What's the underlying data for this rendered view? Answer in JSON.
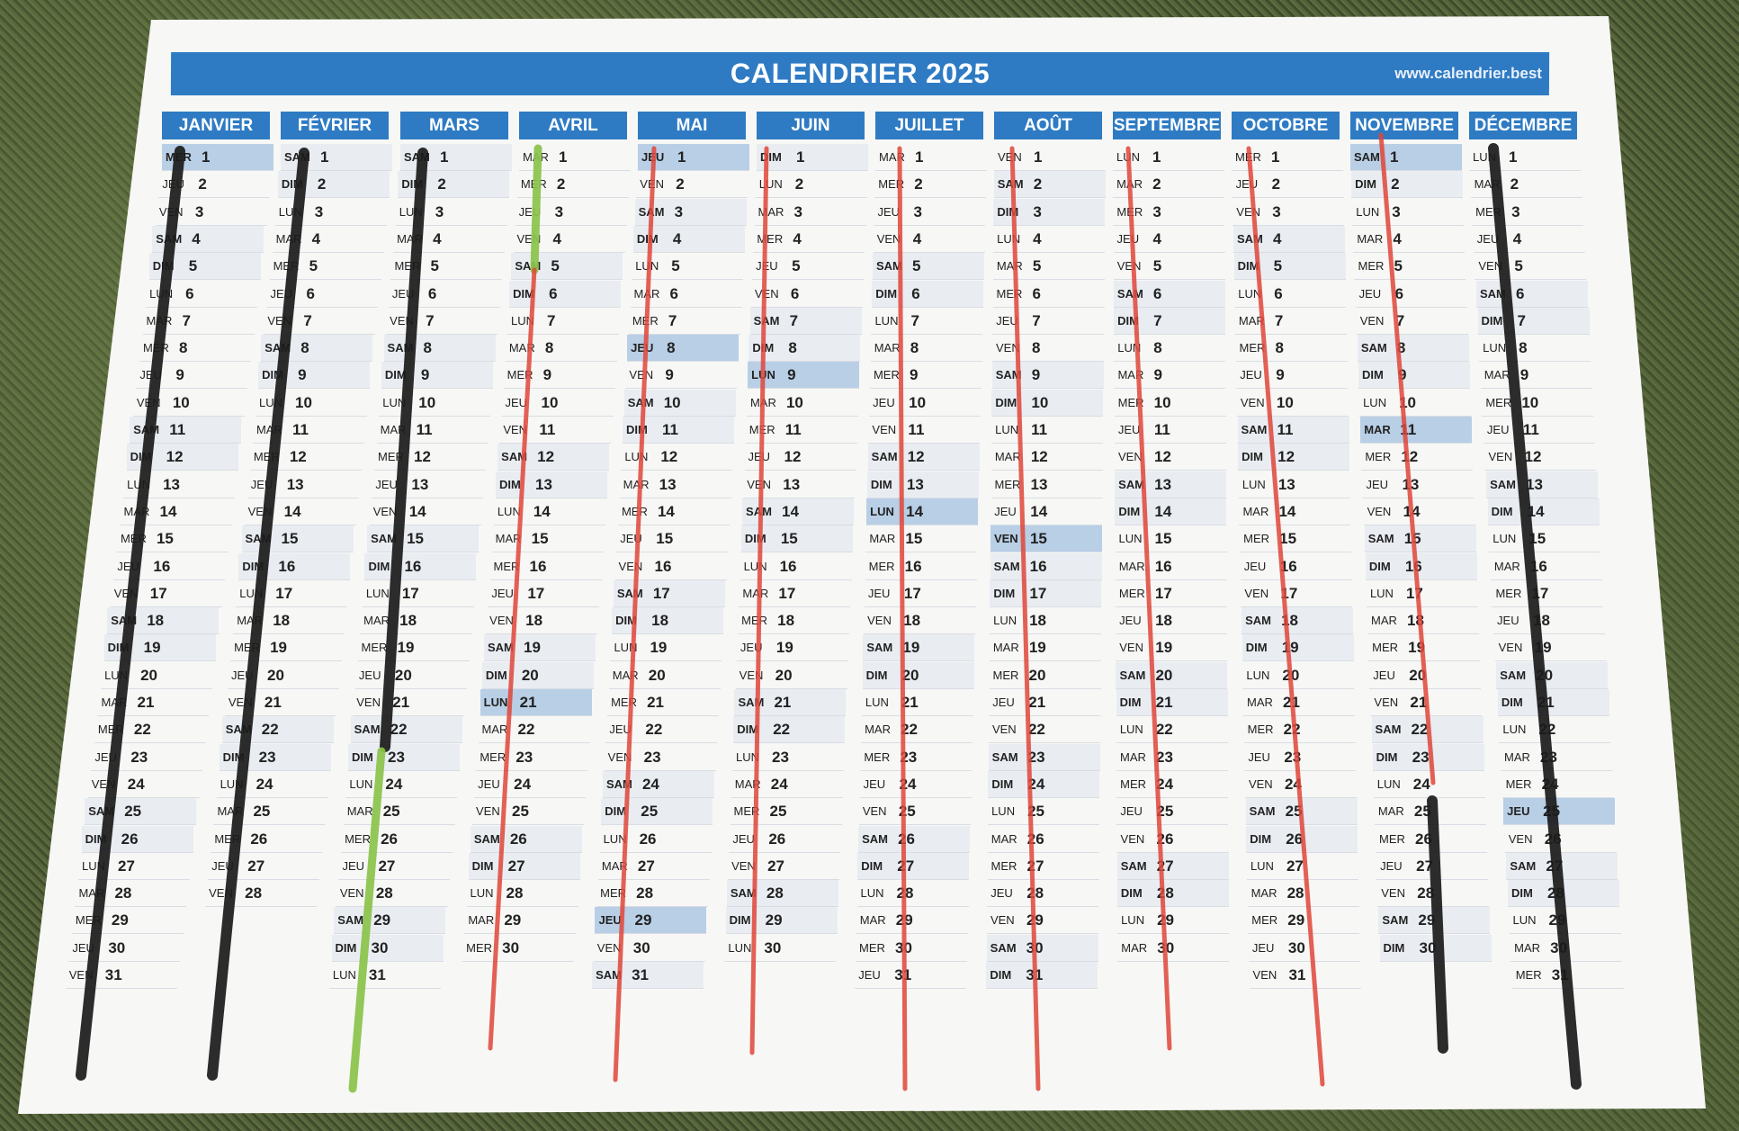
{
  "calendar": {
    "title": "CALENDRIER 2025",
    "website": "www.calendrier.best",
    "accent_color": "#2e7bc4",
    "months": [
      {
        "name": "JANVIER",
        "start": "MER",
        "days": 31
      },
      {
        "name": "FÉVRIER",
        "start": "SAM",
        "days": 28
      },
      {
        "name": "MARS",
        "start": "SAM",
        "days": 31
      },
      {
        "name": "AVRIL",
        "start": "MAR",
        "days": 30
      },
      {
        "name": "MAI",
        "start": "JEU",
        "days": 31
      },
      {
        "name": "JUIN",
        "start": "DIM",
        "days": 30
      },
      {
        "name": "JUILLET",
        "start": "MAR",
        "days": 31
      },
      {
        "name": "AOÛT",
        "start": "VEN",
        "days": 31
      },
      {
        "name": "SEPTEMBRE",
        "start": "LUN",
        "days": 30
      },
      {
        "name": "OCTOBRE",
        "start": "MER",
        "days": 31
      },
      {
        "name": "NOVEMBRE",
        "start": "SAM",
        "days": 30
      },
      {
        "name": "DÉCEMBRE",
        "start": "LUN",
        "days": 31
      }
    ],
    "weekday_names": [
      "LUN",
      "MAR",
      "MER",
      "JEU",
      "VEN",
      "SAM",
      "DIM"
    ],
    "holidays": [
      {
        "month": 0,
        "day": 1
      },
      {
        "month": 3,
        "day": 21
      },
      {
        "month": 4,
        "day": 1
      },
      {
        "month": 4,
        "day": 8
      },
      {
        "month": 4,
        "day": 29
      },
      {
        "month": 5,
        "day": 9
      },
      {
        "month": 6,
        "day": 14
      },
      {
        "month": 7,
        "day": 15
      },
      {
        "month": 10,
        "day": 1
      },
      {
        "month": 10,
        "day": 11
      },
      {
        "month": 11,
        "day": 25
      }
    ],
    "marker_colors": {
      "black": "#1b1b1b",
      "red": "#e0463a",
      "green": "#8bc34a"
    }
  }
}
